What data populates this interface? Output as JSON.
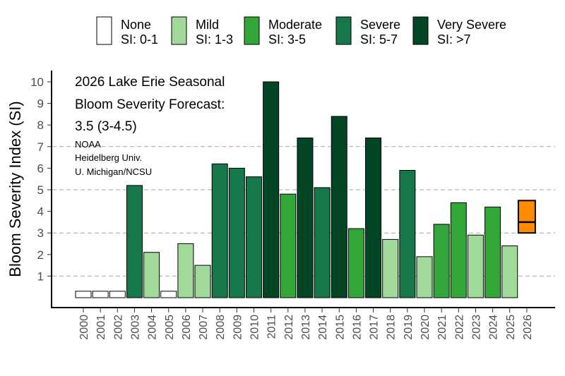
{
  "chart_data": {
    "type": "bar",
    "title": "",
    "xlabel": "",
    "ylabel": "Bloom Severity Index (SI)",
    "ylim": [
      0.3,
      10.5
    ],
    "yticks": [
      1,
      2,
      3,
      4,
      5,
      6,
      7,
      8,
      9,
      10
    ],
    "grid_lines": [
      1,
      3,
      5,
      7
    ],
    "categories": [
      "2000",
      "2001",
      "2002",
      "2003",
      "2004",
      "2005",
      "2006",
      "2007",
      "2008",
      "2009",
      "2010",
      "2011",
      "2012",
      "2013",
      "2014",
      "2015",
      "2016",
      "2017",
      "2018",
      "2019",
      "2020",
      "2021",
      "2022",
      "2023",
      "2024",
      "2025",
      "2026"
    ],
    "values": [
      0.3,
      0.3,
      0.3,
      5.2,
      2.1,
      0.3,
      2.5,
      1.5,
      6.2,
      6.0,
      5.6,
      10.0,
      4.8,
      7.4,
      5.1,
      8.4,
      3.2,
      7.4,
      2.7,
      5.9,
      1.9,
      3.4,
      4.4,
      2.9,
      4.2,
      2.4,
      null
    ],
    "classes": [
      "None",
      "None",
      "None",
      "Severe",
      "Mild",
      "None",
      "Mild",
      "Mild",
      "Severe",
      "Severe",
      "Severe",
      "Very Severe",
      "Moderate",
      "Very Severe",
      "Severe",
      "Very Severe",
      "Moderate",
      "Very Severe",
      "Mild",
      "Severe",
      "Mild",
      "Moderate",
      "Moderate",
      "Mild",
      "Moderate",
      "Mild",
      "Forecast"
    ],
    "forecast": {
      "year": "2026",
      "value": 3.5,
      "low": 3.0,
      "high": 4.5,
      "color": "#ff8c00"
    },
    "legend": [
      {
        "name": "None",
        "range": "SI: 0-1",
        "color": "#ffffff"
      },
      {
        "name": "Mild",
        "range": "SI: 1-3",
        "color": "#a1d99b"
      },
      {
        "name": "Moderate",
        "range": "SI: 3-5",
        "color": "#33a63a"
      },
      {
        "name": "Severe",
        "range": "SI: 5-7",
        "color": "#16774a"
      },
      {
        "name": "Very Severe",
        "range": "SI: >7",
        "color": "#034626"
      }
    ],
    "legend_position": "top",
    "annotation": {
      "line1": "2026 Lake Erie Seasonal",
      "line2": "Bloom Severity Forecast:",
      "line3": "3.5 (3-4.5)",
      "source1": "NOAA",
      "source2": "Heidelberg Univ.",
      "source3": "U. Michigan/NCSU"
    }
  }
}
